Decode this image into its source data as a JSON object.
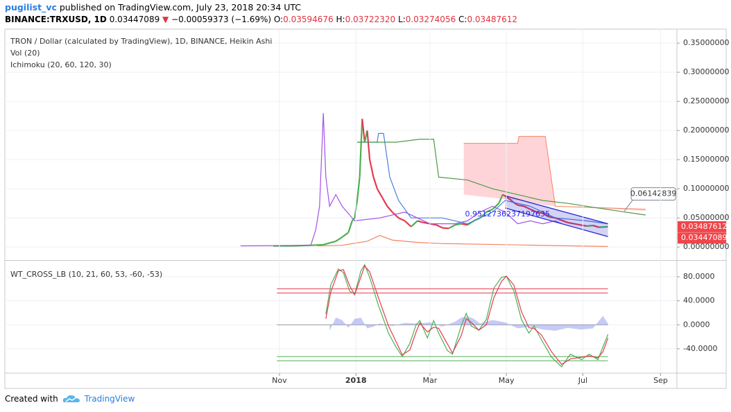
{
  "header": {
    "user": "pugilist_vc",
    "published": "published on TradingView.com, July 23, 2018 20:34 UTC",
    "symbol": "BINANCE:TRXUSD, 1D",
    "last": "0.03447089",
    "arrow": "▼",
    "change": "−0.00059373 (−1.69%)",
    "ohlc": [
      {
        "label": "O:",
        "value": "0.03594676"
      },
      {
        "label": "H:",
        "value": "0.03722320"
      },
      {
        "label": "L:",
        "value": "0.03274056"
      },
      {
        "label": "C:",
        "value": "0.03487612"
      }
    ]
  },
  "footer": {
    "created": "Created with",
    "brand": "TradingView"
  },
  "chart_data": [
    {
      "type": "line",
      "title": "TRON / Dollar (calculated by TradingView), 1D, BINANCE, Heikin Ashi",
      "indicators": [
        "Vol (20)",
        "Ichimoku (20, 60, 120, 30)"
      ],
      "xlim": [
        -219,
        317
      ],
      "ylim": [
        -0.02,
        0.374
      ],
      "yticks": [
        {
          "value": 0.35,
          "label": "0.35000000"
        },
        {
          "value": 0.3,
          "label": "0.30000000"
        },
        {
          "value": 0.25,
          "label": "0.25000000"
        },
        {
          "value": 0.2,
          "label": "0.20000000"
        },
        {
          "value": 0.15,
          "label": "0.15000000"
        },
        {
          "value": 0.1,
          "label": "0.10000000"
        },
        {
          "value": 0.05,
          "label": "0.05000000"
        },
        {
          "value": 0,
          "label": "0.00000000"
        }
      ],
      "grid": true,
      "cloud": {
        "x": [
          147,
          190,
          191,
          212,
          220,
          292
        ],
        "upper": [
          0.178,
          0.178,
          0.19,
          0.19,
          0.07,
          0.065
        ],
        "lower": [
          0.09,
          0.08,
          0.08,
          0.072,
          0.07,
          0.062
        ],
        "color": "#ffcdd2",
        "line_color": "#f4845f"
      },
      "series": [
        {
          "style": "heikin",
          "up_color": "#4caf50",
          "down_color": "#e53950",
          "x": [
            -5,
            10,
            25,
            35,
            40,
            45,
            50,
            55,
            58,
            60,
            62,
            64,
            66,
            68,
            70,
            72,
            75,
            78,
            82,
            86,
            90,
            95,
            100,
            105,
            110,
            115,
            120,
            125,
            130,
            135,
            140,
            145,
            150,
            155,
            160,
            165,
            170,
            175,
            178,
            182,
            186,
            190,
            195,
            200,
            205,
            210,
            215,
            220,
            225,
            230,
            235,
            240,
            245,
            250,
            255,
            262
          ],
          "values": [
            0.002,
            0.002,
            0.003,
            0.004,
            0.007,
            0.01,
            0.017,
            0.025,
            0.045,
            0.05,
            0.08,
            0.12,
            0.22,
            0.18,
            0.2,
            0.15,
            0.12,
            0.1,
            0.085,
            0.07,
            0.06,
            0.05,
            0.045,
            0.035,
            0.045,
            0.042,
            0.04,
            0.038,
            0.033,
            0.032,
            0.038,
            0.04,
            0.038,
            0.045,
            0.05,
            0.06,
            0.065,
            0.075,
            0.09,
            0.085,
            0.078,
            0.072,
            0.07,
            0.065,
            0.06,
            0.058,
            0.052,
            0.05,
            0.046,
            0.042,
            0.04,
            0.038,
            0.036,
            0.037,
            0.034,
            0.0349
          ]
        },
        {
          "style": "line",
          "color": "#a350e6",
          "x": [
            -31,
            25,
            29,
            32,
            35,
            37,
            40,
            45,
            50,
            60,
            80,
            100,
            120,
            140,
            150,
            160,
            170,
            180,
            190,
            200,
            210,
            220,
            225
          ],
          "values": [
            0.002,
            0.003,
            0.03,
            0.07,
            0.23,
            0.12,
            0.07,
            0.09,
            0.07,
            0.045,
            0.05,
            0.06,
            0.04,
            0.04,
            0.045,
            0.06,
            0.07,
            0.06,
            0.04,
            0.045,
            0.04,
            0.045,
            0.04
          ]
        },
        {
          "style": "line",
          "color": "#4a7fe0",
          "x": [
            62,
            78,
            79,
            83,
            88,
            95,
            105,
            130,
            150,
            170,
            180,
            200,
            220,
            245,
            262
          ],
          "values": [
            0.18,
            0.18,
            0.195,
            0.195,
            0.12,
            0.08,
            0.05,
            0.05,
            0.04,
            0.06,
            0.08,
            0.07,
            0.05,
            0.045,
            0.04
          ]
        },
        {
          "style": "line",
          "color": "#4a9a4a",
          "x": [
            62,
            92,
            93,
            112,
            123,
            127,
            150,
            170,
            190,
            210,
            230,
            260,
            292
          ],
          "values": [
            0.18,
            0.18,
            0.18,
            0.185,
            0.185,
            0.12,
            0.115,
            0.1,
            0.09,
            0.08,
            0.075,
            0.065,
            0.055
          ]
        },
        {
          "style": "line",
          "color": "#f4845f",
          "x": [
            30,
            50,
            70,
            80,
            90,
            110,
            130,
            180,
            262
          ],
          "values": [
            0.002,
            0.003,
            0.01,
            0.02,
            0.012,
            0.008,
            0.006,
            0.004,
            0.001
          ]
        }
      ],
      "channel": {
        "x": [
          180,
          262
        ],
        "upper": [
          0.088,
          0.04
        ],
        "lower": [
          0.067,
          0.018
        ],
        "color": "#2424d0"
      },
      "annotation": {
        "text": "0.9512736237197635",
        "x": 148,
        "y": 0.056,
        "color": "#2424ff"
      },
      "callout": {
        "x": 275,
        "value": 0.06142839,
        "label": "0.06142839"
      },
      "price_labels": [
        {
          "value": 0.03487612,
          "label": "0.03487612",
          "color": "#f0464b"
        },
        {
          "value": 0.03447089,
          "label": "0.03447089",
          "color": "#f0464b"
        }
      ]
    },
    {
      "type": "line",
      "title": "WT_CROSS_LB (10, 21, 60, 53, -60, -53)",
      "xlim": [
        -219,
        317
      ],
      "ylim": [
        -80.6,
        104.3
      ],
      "yticks": [
        {
          "value": 80,
          "label": "80.0000"
        },
        {
          "value": 40,
          "label": "40.0000"
        },
        {
          "value": 0,
          "label": "0.0000"
        },
        {
          "value": -40,
          "label": "-40.0000"
        }
      ],
      "xticks": [
        {
          "value": 0,
          "label": "Nov"
        },
        {
          "value": 61,
          "label": "2018"
        },
        {
          "value": 120,
          "label": "Mar"
        },
        {
          "value": 181,
          "label": "May"
        },
        {
          "value": 242,
          "label": "Jul"
        },
        {
          "value": 304,
          "label": "Sep"
        }
      ],
      "grid": true,
      "levels": {
        "x": [
          -2,
          262
        ],
        "lines": [
          {
            "value": 60,
            "color": "#e53950"
          },
          {
            "value": 53,
            "color": "#e53950"
          },
          {
            "value": 0,
            "color": "#999999"
          },
          {
            "value": -53,
            "color": "#4caf50"
          },
          {
            "value": -60,
            "color": "#4caf50"
          }
        ]
      },
      "series": [
        {
          "style": "area",
          "color": "#9fa8f0",
          "x": [
            40,
            45,
            50,
            55,
            60,
            65,
            70,
            75,
            80,
            90,
            100,
            110,
            120,
            130,
            140,
            145,
            150,
            155,
            160,
            170,
            180,
            190,
            200,
            210,
            220,
            230,
            240,
            250,
            258,
            262
          ],
          "values": [
            -10,
            12,
            8,
            -5,
            10,
            12,
            -6,
            -3,
            2,
            -2,
            3,
            2,
            4,
            -3,
            5,
            12,
            14,
            10,
            2,
            8,
            4,
            -6,
            -3,
            -8,
            -10,
            -5,
            -8,
            -6,
            15,
            2
          ]
        },
        {
          "style": "line",
          "color": "#4caf50",
          "x": [
            37,
            41,
            47,
            51,
            56,
            60,
            65,
            68,
            72,
            79,
            87,
            93,
            98,
            104,
            109,
            112,
            118,
            123,
            127,
            134,
            138,
            145,
            149,
            153,
            159,
            165,
            171,
            177,
            181,
            187,
            193,
            199,
            203,
            209,
            217,
            225,
            232,
            241,
            247,
            254,
            258,
            262
          ],
          "values": [
            18,
            67,
            93,
            87,
            56,
            51,
            90,
            100,
            79,
            32,
            -14,
            -37,
            -53,
            -31,
            0,
            7,
            -22,
            7,
            -14,
            -43,
            -49,
            -2,
            19,
            -2,
            -9,
            9,
            61,
            79,
            81,
            56,
            9,
            -14,
            -2,
            -25,
            -54,
            -70,
            -49,
            -58,
            -49,
            -58,
            -37,
            -16
          ]
        },
        {
          "style": "line",
          "color": "#e53950",
          "x": [
            37,
            41,
            47,
            51,
            56,
            60,
            65,
            68,
            72,
            79,
            87,
            93,
            98,
            104,
            109,
            112,
            118,
            123,
            127,
            134,
            138,
            145,
            149,
            153,
            159,
            165,
            171,
            177,
            181,
            187,
            193,
            199,
            203,
            209,
            217,
            225,
            232,
            241,
            247,
            254,
            258,
            262
          ],
          "values": [
            10,
            55,
            90,
            92,
            65,
            50,
            80,
            98,
            88,
            45,
            -2,
            -28,
            -50,
            -42,
            -12,
            3,
            -12,
            -4,
            -6,
            -32,
            -47,
            -18,
            10,
            4,
            -9,
            0,
            45,
            72,
            81,
            66,
            22,
            -5,
            -6,
            -17,
            -45,
            -66,
            -57,
            -54,
            -52,
            -55,
            -45,
            -22
          ]
        }
      ]
    }
  ]
}
